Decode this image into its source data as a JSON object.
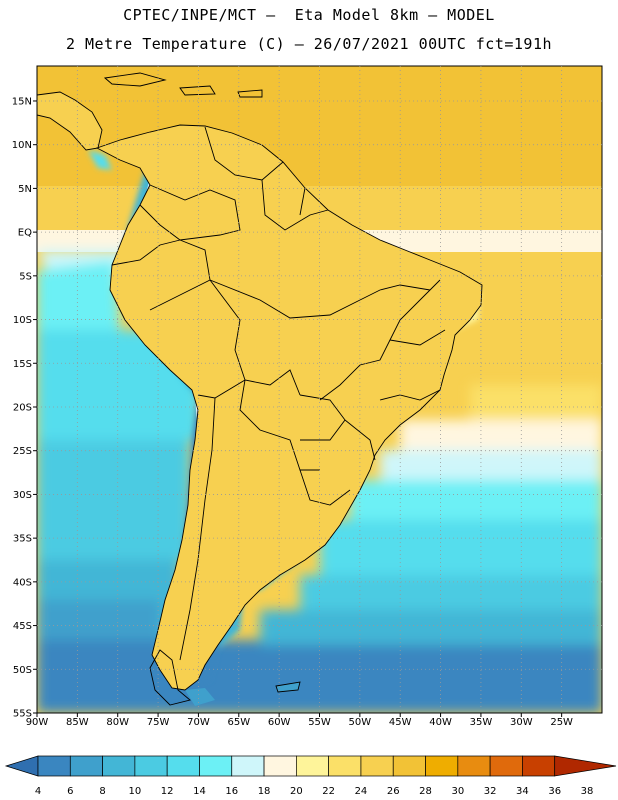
{
  "title": {
    "line1": "CPTEC/INPE/MCT –  Eta Model 8km – MODEL",
    "line2": "2 Metre Temperature (C) – 26/07/2021 00UTC fct=191h"
  },
  "map": {
    "lat_labels": [
      "15N",
      "10N",
      "5N",
      "EQ",
      "5S",
      "10S",
      "15S",
      "20S",
      "25S",
      "30S",
      "35S",
      "40S",
      "45S",
      "50S",
      "55S"
    ],
    "lat_values": [
      15,
      10,
      5,
      0,
      -5,
      -10,
      -15,
      -20,
      -25,
      -30,
      -35,
      -40,
      -45,
      -50,
      -55
    ],
    "lon_labels": [
      "90W",
      "85W",
      "80W",
      "75W",
      "70W",
      "65W",
      "60W",
      "55W",
      "50W",
      "45W",
      "40W",
      "35W",
      "30W",
      "25W"
    ],
    "lon_values": [
      -90,
      -85,
      -80,
      -75,
      -70,
      -65,
      -60,
      -55,
      -50,
      -45,
      -40,
      -35,
      -30,
      -25
    ],
    "lon_range": [
      -90,
      -20
    ],
    "lat_range": [
      -55,
      19
    ],
    "grid": "dotted"
  },
  "colorbar": {
    "labels": [
      "4",
      "6",
      "8",
      "10",
      "12",
      "14",
      "16",
      "18",
      "20",
      "22",
      "24",
      "26",
      "28",
      "30",
      "32",
      "34",
      "36",
      "38"
    ],
    "colors": [
      "#2f6fb0",
      "#3a86c0",
      "#3fa0cc",
      "#43b6d6",
      "#4bcbe2",
      "#55dded",
      "#6cf0f5",
      "#cff6fa",
      "#fff6e0",
      "#fef49a",
      "#fbe068",
      "#f7d050",
      "#f2c236",
      "#efad00",
      "#e88c10",
      "#e06a0c",
      "#c84000",
      "#b02800"
    ]
  }
}
